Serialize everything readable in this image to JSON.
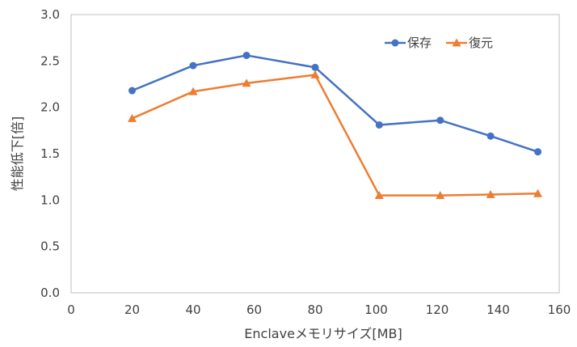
{
  "chart_data": {
    "type": "line",
    "xlabel": "Enclaveメモリサイズ[MB]",
    "ylabel": "性能低下[倍]",
    "xlim": [
      0,
      160
    ],
    "ylim": [
      0.0,
      3.0
    ],
    "xticks": [
      0,
      20,
      40,
      60,
      80,
      100,
      120,
      140,
      160
    ],
    "yticks": [
      "0.0",
      "0.5",
      "1.0",
      "1.5",
      "2.0",
      "2.5",
      "3.0"
    ],
    "grid": false,
    "legend_position": "top-right",
    "series": [
      {
        "name": "保存",
        "color": "#4472C4",
        "marker": "circle",
        "x": [
          20,
          40,
          57.5,
          80,
          101,
          121,
          137.5,
          153
        ],
        "y": [
          2.18,
          2.45,
          2.56,
          2.43,
          1.81,
          1.86,
          1.69,
          1.52
        ]
      },
      {
        "name": "復元",
        "color": "#ED7D31",
        "marker": "triangle",
        "x": [
          20,
          40,
          57.5,
          80,
          101,
          121,
          137.5,
          153
        ],
        "y": [
          1.88,
          2.17,
          2.26,
          2.35,
          1.05,
          1.05,
          1.06,
          1.07
        ]
      }
    ]
  }
}
